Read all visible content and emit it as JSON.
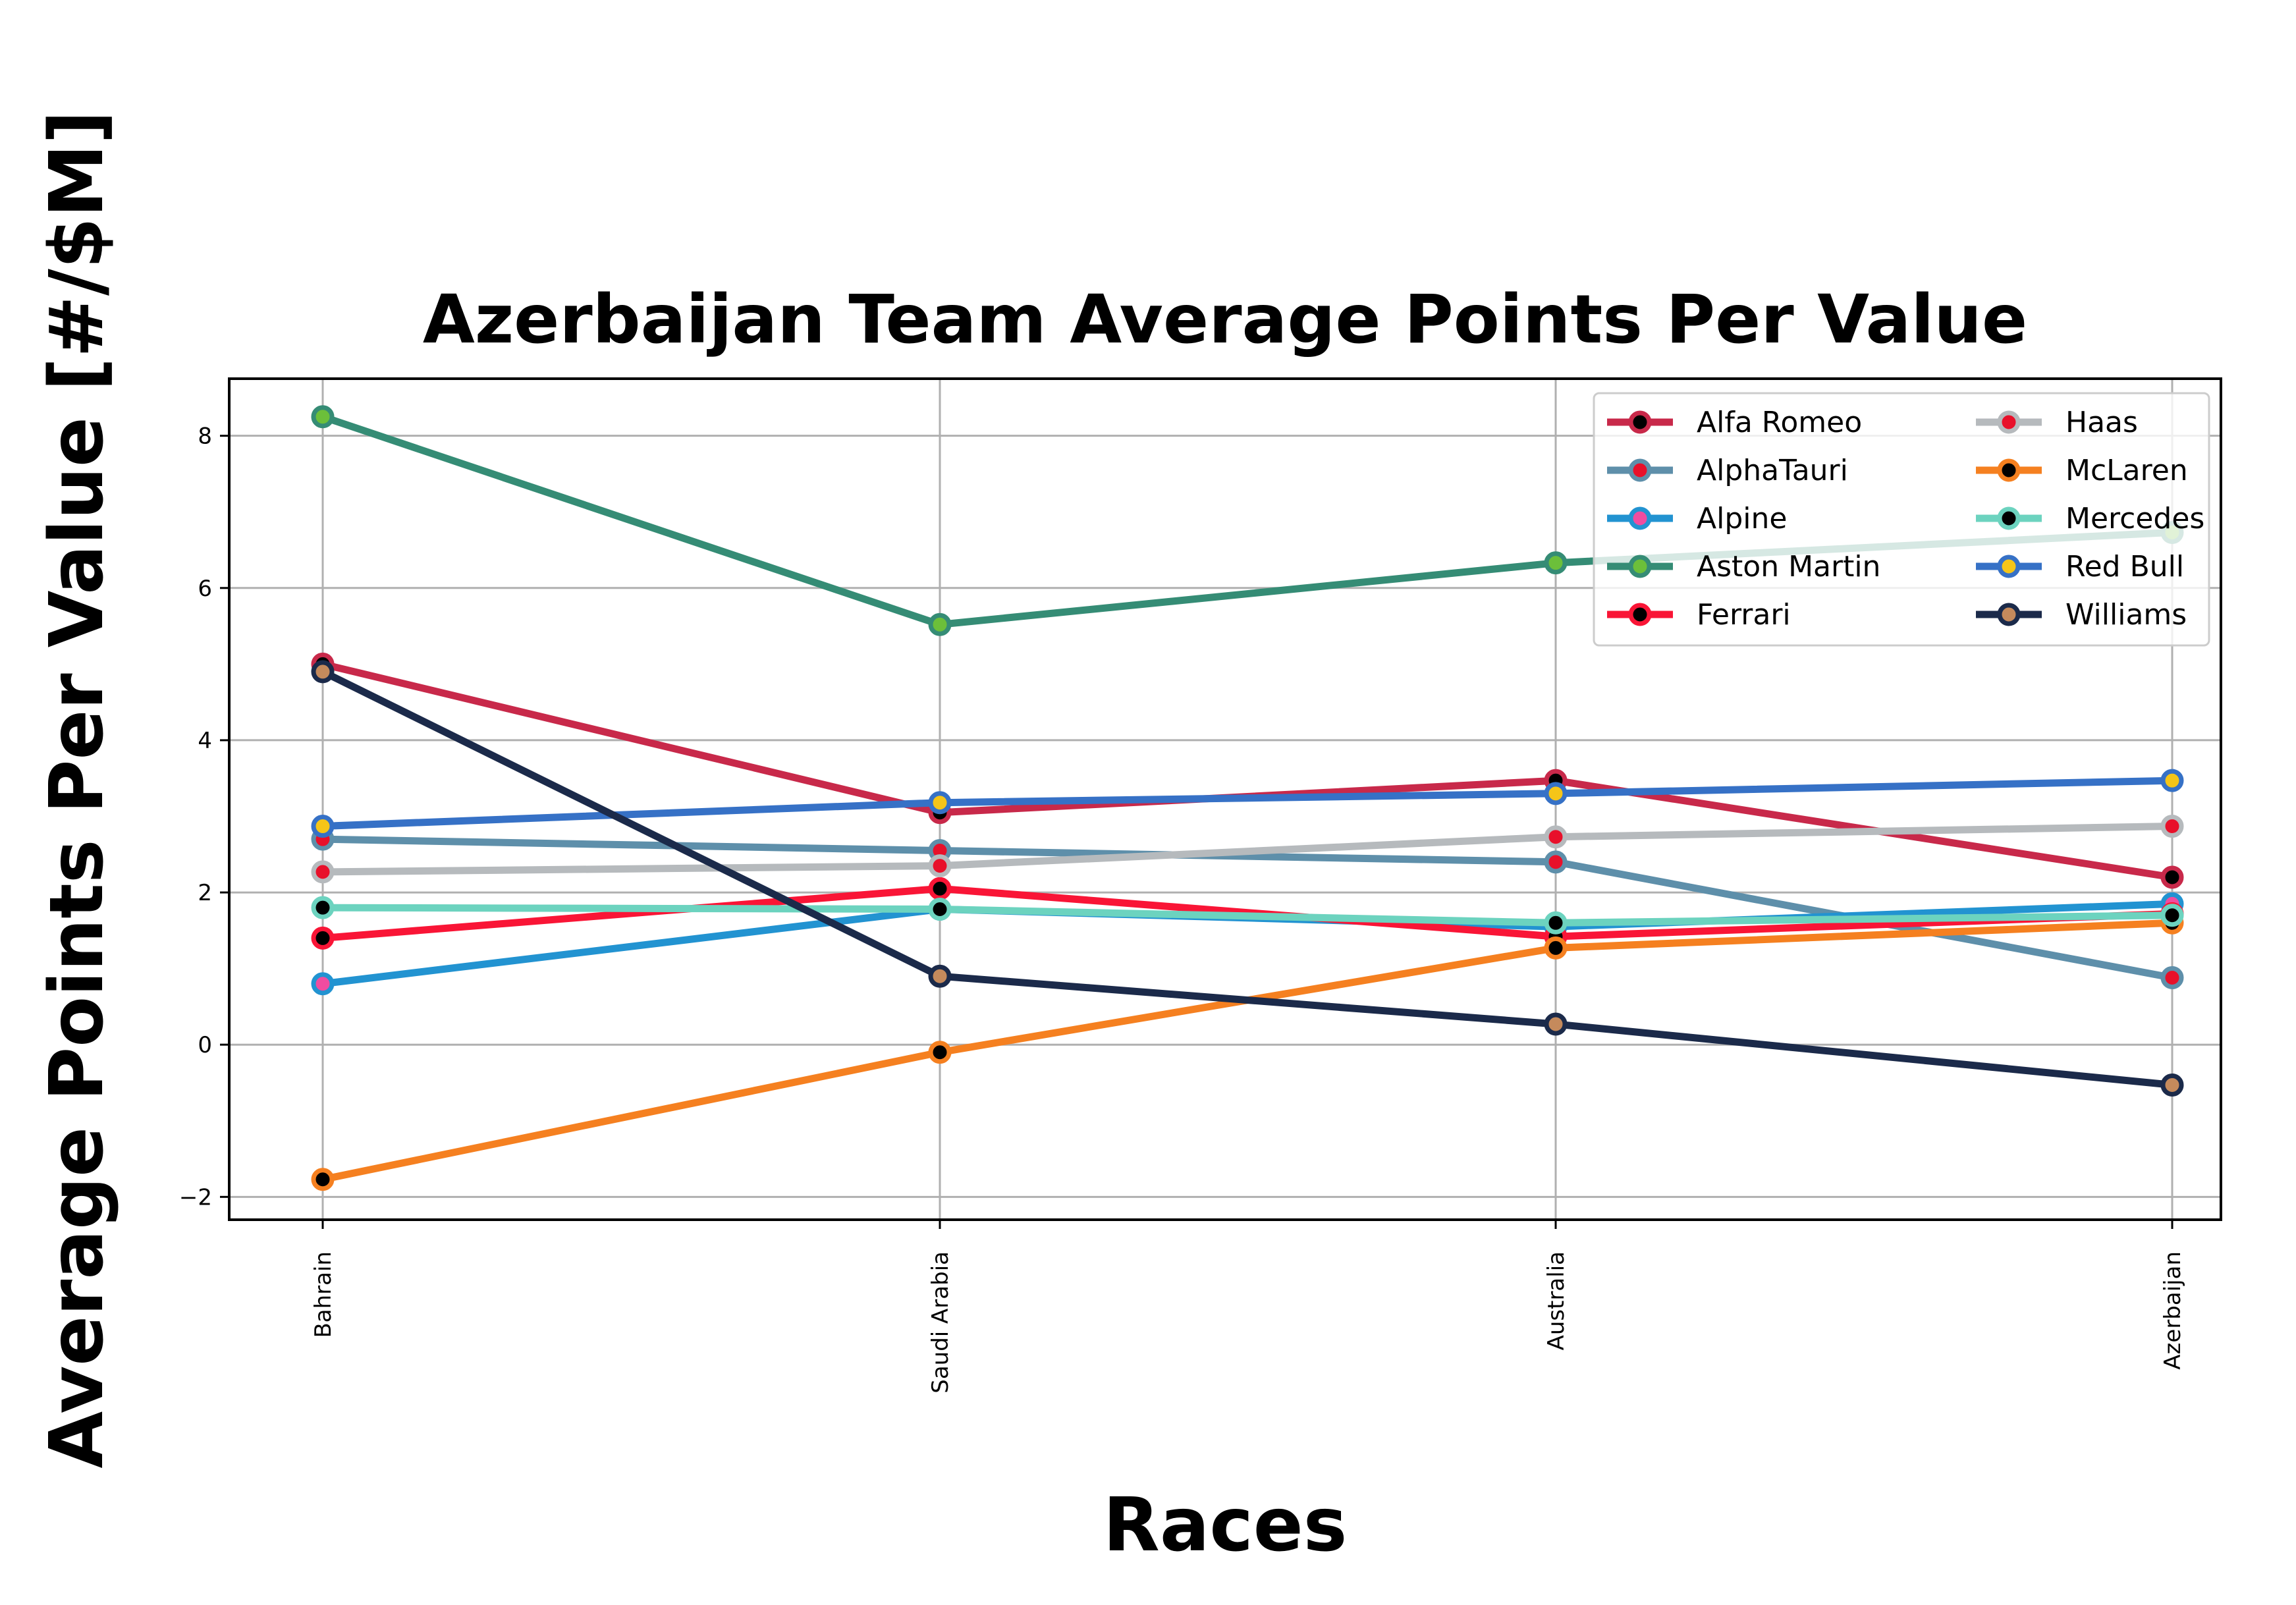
{
  "chart_data": {
    "type": "line",
    "title": "Azerbaijan Team Average Points Per Value",
    "xlabel": "Races",
    "ylabel": "Average Points Per Value [#/$M]",
    "categories": [
      "Bahrain",
      "Saudi Arabia",
      "Australia",
      "Azerbaijan"
    ],
    "ylim": [
      -2.3,
      8.75
    ],
    "yticks": [
      -2,
      0,
      2,
      4,
      6,
      8
    ],
    "ytick_labels": [
      "−2",
      "0",
      "2",
      "4",
      "6",
      "8"
    ],
    "grid": true,
    "legend_position": "top-right",
    "legend_columns": 2,
    "series": [
      {
        "name": "Alfa Romeo",
        "color": "#c8294a",
        "marker_color": "#000000",
        "values": [
          5.0,
          3.05,
          3.47,
          2.2
        ]
      },
      {
        "name": "AlphaTauri",
        "color": "#5e8faa",
        "marker_color": "#e8102a",
        "values": [
          2.7,
          2.55,
          2.4,
          0.88
        ]
      },
      {
        "name": "Alpine",
        "color": "#2293d1",
        "marker_color": "#f04ca0",
        "values": [
          0.8,
          1.78,
          1.55,
          1.85
        ]
      },
      {
        "name": "Aston Martin",
        "color": "#358c75",
        "marker_color": "#6cbf3a",
        "values": [
          8.25,
          5.52,
          6.33,
          6.73
        ]
      },
      {
        "name": "Ferrari",
        "color": "#f91536",
        "marker_color": "#000000",
        "values": [
          1.4,
          2.05,
          1.42,
          1.72
        ]
      },
      {
        "name": "Haas",
        "color": "#b6babd",
        "marker_color": "#e8102a",
        "values": [
          2.27,
          2.35,
          2.73,
          2.87
        ]
      },
      {
        "name": "McLaren",
        "color": "#f58020",
        "marker_color": "#000000",
        "values": [
          -1.77,
          -0.1,
          1.27,
          1.6
        ]
      },
      {
        "name": "Mercedes",
        "color": "#6cd3bf",
        "marker_color": "#000000",
        "values": [
          1.8,
          1.78,
          1.6,
          1.7
        ]
      },
      {
        "name": "Red Bull",
        "color": "#3671c6",
        "marker_color": "#f5c518",
        "values": [
          2.87,
          3.18,
          3.3,
          3.47
        ]
      },
      {
        "name": "Williams",
        "color": "#1b2a4a",
        "marker_color": "#c58a5c",
        "values": [
          4.9,
          0.9,
          0.27,
          -0.53
        ]
      }
    ]
  }
}
